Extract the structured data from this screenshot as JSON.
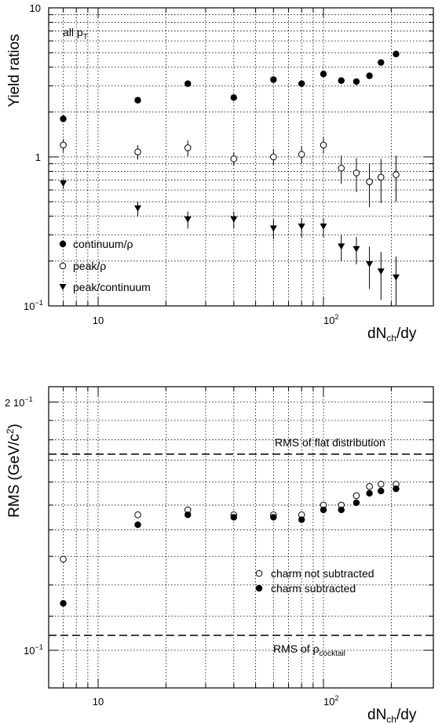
{
  "chart_data": [
    {
      "type": "scatter",
      "title": "all p_T",
      "xlabel": "dN_ch/dy",
      "ylabel": "Yield ratios",
      "xscale": "log",
      "yscale": "log",
      "xlim": [
        6,
        260
      ],
      "ylim": [
        0.1,
        10
      ],
      "grid": true,
      "legend_position": "bottom-left",
      "x_tick_labels": [
        "10",
        "10^2"
      ],
      "y_tick_labels": [
        "10",
        "1",
        "10^-1"
      ],
      "series": [
        {
          "name": "continuum/ρ",
          "marker": "filled-circle",
          "points": [
            {
              "x": 7,
              "y": 1.8
            },
            {
              "x": 15,
              "y": 2.4
            },
            {
              "x": 25,
              "y": 3.1
            },
            {
              "x": 40,
              "y": 2.5
            },
            {
              "x": 60,
              "y": 3.3
            },
            {
              "x": 80,
              "y": 3.1
            },
            {
              "x": 100,
              "y": 3.6
            },
            {
              "x": 120,
              "y": 3.25
            },
            {
              "x": 140,
              "y": 3.2
            },
            {
              "x": 160,
              "y": 3.5
            },
            {
              "x": 180,
              "y": 4.3
            },
            {
              "x": 210,
              "y": 4.9
            }
          ]
        },
        {
          "name": "peak/ρ",
          "marker": "open-circle",
          "points": [
            {
              "x": 7,
              "y": 1.2,
              "err": 0.12
            },
            {
              "x": 15,
              "y": 1.08,
              "err": 0.12
            },
            {
              "x": 25,
              "y": 1.15,
              "err": 0.14
            },
            {
              "x": 40,
              "y": 0.97,
              "err": 0.1
            },
            {
              "x": 60,
              "y": 1.0,
              "err": 0.12
            },
            {
              "x": 80,
              "y": 1.04,
              "err": 0.14
            },
            {
              "x": 100,
              "y": 1.2,
              "err": 0.15
            },
            {
              "x": 120,
              "y": 0.84,
              "err": 0.18
            },
            {
              "x": 140,
              "y": 0.78,
              "err": 0.2
            },
            {
              "x": 160,
              "y": 0.68,
              "err": 0.22
            },
            {
              "x": 180,
              "y": 0.73,
              "err": 0.24
            },
            {
              "x": 210,
              "y": 0.76,
              "err": 0.26
            }
          ]
        },
        {
          "name": "peak/continuum",
          "marker": "filled-triangle-down",
          "points": [
            {
              "x": 7,
              "y": 0.66,
              "err": 0.05
            },
            {
              "x": 15,
              "y": 0.45,
              "err": 0.05
            },
            {
              "x": 25,
              "y": 0.38,
              "err": 0.05
            },
            {
              "x": 40,
              "y": 0.38,
              "err": 0.05
            },
            {
              "x": 60,
              "y": 0.33,
              "err": 0.05
            },
            {
              "x": 80,
              "y": 0.34,
              "err": 0.05
            },
            {
              "x": 100,
              "y": 0.34,
              "err": 0.05
            },
            {
              "x": 120,
              "y": 0.25,
              "err": 0.05
            },
            {
              "x": 140,
              "y": 0.24,
              "err": 0.05
            },
            {
              "x": 160,
              "y": 0.19,
              "err": 0.06
            },
            {
              "x": 180,
              "y": 0.17,
              "err": 0.06
            },
            {
              "x": 210,
              "y": 0.155,
              "err": 0.06
            }
          ]
        }
      ]
    },
    {
      "type": "scatter",
      "xlabel": "dN_ch/dy",
      "ylabel": "RMS (GeV/c^2)",
      "xscale": "log",
      "yscale": "log",
      "xlim": [
        6,
        260
      ],
      "ylim": [
        0.094,
        0.225
      ],
      "grid": true,
      "legend_position": "bottom-right",
      "x_tick_labels": [
        "10",
        "10^2"
      ],
      "y_tick_labels": [
        "2 10^-1",
        "10^-1"
      ],
      "reference_lines": [
        {
          "label": "RMS of flat distribution",
          "y": 0.178
        },
        {
          "label": "RMS of ρ_cocktail",
          "y": 0.1035
        }
      ],
      "series": [
        {
          "name": "charm not subtracted",
          "marker": "open-circle",
          "points": [
            {
              "x": 7,
              "y": 0.129
            },
            {
              "x": 15,
              "y": 0.146
            },
            {
              "x": 25,
              "y": 0.148
            },
            {
              "x": 40,
              "y": 0.146
            },
            {
              "x": 60,
              "y": 0.146
            },
            {
              "x": 80,
              "y": 0.146
            },
            {
              "x": 100,
              "y": 0.15
            },
            {
              "x": 120,
              "y": 0.15
            },
            {
              "x": 140,
              "y": 0.154
            },
            {
              "x": 160,
              "y": 0.158
            },
            {
              "x": 180,
              "y": 0.159
            },
            {
              "x": 210,
              "y": 0.159
            }
          ]
        },
        {
          "name": "charm subtracted",
          "marker": "filled-circle",
          "points": [
            {
              "x": 7,
              "y": 0.114
            },
            {
              "x": 15,
              "y": 0.142
            },
            {
              "x": 25,
              "y": 0.146
            },
            {
              "x": 40,
              "y": 0.145
            },
            {
              "x": 60,
              "y": 0.145
            },
            {
              "x": 80,
              "y": 0.144
            },
            {
              "x": 100,
              "y": 0.148
            },
            {
              "x": 120,
              "y": 0.148
            },
            {
              "x": 140,
              "y": 0.151
            },
            {
              "x": 160,
              "y": 0.155
            },
            {
              "x": 180,
              "y": 0.156
            },
            {
              "x": 210,
              "y": 0.157
            }
          ]
        }
      ]
    }
  ],
  "text": {
    "top_ylabel": "Yield ratios",
    "top_annot_main": "all p",
    "top_annot_sub": "T",
    "top_ytick_10": "10",
    "top_ytick_1": "1",
    "top_ytick_01_base": "10",
    "top_ytick_01_exp": "−1",
    "xtick_10": "10",
    "xtick_100_base": "10",
    "xtick_100_exp": "2",
    "xlabel_main": "dN",
    "xlabel_sub": "ch",
    "xlabel_tail": "/dy",
    "legend1": "continuum/ρ",
    "legend2": "peak/ρ",
    "legend3": "peak/continuum",
    "bot_ylabel_main": "RMS (GeV/c",
    "bot_ylabel_sup": "2",
    "bot_ylabel_tail": ")",
    "bot_ytick_2_base": "2 10",
    "bot_ytick_2_exp": "−1",
    "bot_ytick_1_base": "10",
    "bot_ytick_1_exp": "−1",
    "flat_label": "RMS of flat distribution",
    "cocktail_main": "RMS of ρ",
    "cocktail_sub": "cocktail",
    "legend_b1": "charm not subtracted",
    "legend_b2": "charm subtracted"
  }
}
